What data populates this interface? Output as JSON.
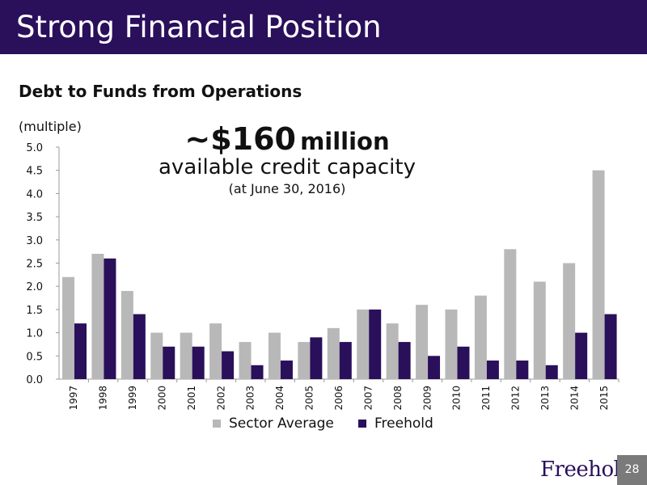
{
  "header": {
    "title": "Strong Financial Position"
  },
  "callout": {
    "amount": "~$160",
    "amount_suffix": "million",
    "line2": "available credit capacity",
    "line3": "(at June 30, 2016)"
  },
  "footer": {
    "logo": "Freehold",
    "page_number": "28"
  },
  "colors": {
    "header_bg": "#2a0f5b",
    "sector": "#b8b8b8",
    "freehold": "#2a0f5b"
  },
  "chart_data": {
    "type": "bar",
    "title": "Debt to Funds from Operations",
    "ylabel": "(multiple)",
    "ylim": [
      0,
      5.0
    ],
    "yticks": [
      "0.0",
      "0.5",
      "1.0",
      "1.5",
      "2.0",
      "2.5",
      "3.0",
      "3.5",
      "4.0",
      "4.5",
      "5.0"
    ],
    "categories": [
      "1997",
      "1998",
      "1999",
      "2000",
      "2001",
      "2002",
      "2003",
      "2004",
      "2005",
      "2006",
      "2007",
      "2008",
      "2009",
      "2010",
      "2011",
      "2012",
      "2013",
      "2014",
      "2015"
    ],
    "series": [
      {
        "name": "Sector Average",
        "values": [
          2.2,
          2.7,
          1.9,
          1.0,
          1.0,
          1.2,
          0.8,
          1.0,
          0.8,
          1.1,
          1.5,
          1.2,
          1.6,
          1.5,
          1.8,
          2.8,
          2.1,
          2.5,
          4.5
        ]
      },
      {
        "name": "Freehold",
        "values": [
          1.2,
          2.6,
          1.4,
          0.7,
          0.7,
          0.6,
          0.3,
          0.4,
          0.9,
          0.8,
          1.5,
          0.8,
          0.5,
          0.7,
          0.4,
          0.4,
          0.3,
          1.0,
          1.4
        ]
      }
    ],
    "legend_position": "bottom"
  }
}
